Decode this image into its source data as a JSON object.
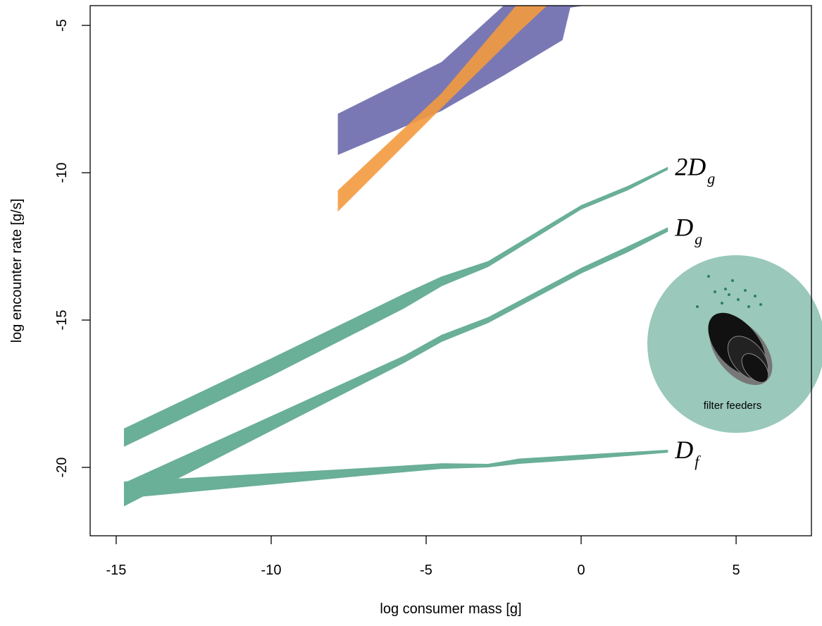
{
  "chart_data": {
    "type": "band",
    "x_label": "log consumer mass [g]",
    "y_label": "log encounter rate [g/s]",
    "xlim": [
      -15.84,
      7.43
    ],
    "ylim": [
      -22.32,
      -4.33
    ],
    "xticks": [
      -15,
      -10,
      -5,
      0,
      5
    ],
    "yticks": [
      -5,
      -10,
      -15,
      -20
    ],
    "annotation": "filter feeders",
    "series": [
      {
        "color": "#7a78b4",
        "x": [
          -7.85,
          -4.5,
          -2.5,
          -0.6,
          -0.35,
          0.1
        ],
        "upper": [
          -8.0,
          -6.24,
          -4.33,
          -4.33,
          -4.33,
          -4.33
        ],
        "lower": [
          -9.4,
          -7.9,
          -6.7,
          -5.5,
          -4.4,
          -4.33
        ]
      },
      {
        "color": "#f39a3e",
        "x": [
          -7.85,
          -4.5,
          -2.1,
          -1.1
        ],
        "upper": [
          -10.6,
          -7.3,
          -4.33,
          -4.33
        ],
        "lower": [
          -11.32,
          -7.8,
          -5.31,
          -4.33
        ]
      },
      {
        "name": "2D",
        "subscript": "g",
        "color": "#6aaf97",
        "x": [
          -14.75,
          -10,
          -5.7,
          -4.5,
          -3,
          0,
          1.5,
          2.8
        ],
        "upper": [
          -18.68,
          -16.3,
          -14.1,
          -13.52,
          -13.0,
          -11.1,
          -10.45,
          -9.8
        ],
        "lower": [
          -19.3,
          -16.9,
          -14.6,
          -13.85,
          -13.2,
          -11.25,
          -10.6,
          -9.9
        ]
      },
      {
        "name": "D",
        "subscript": "g",
        "color": "#6aaf97",
        "x": [
          -14.75,
          -10,
          -5.7,
          -4.5,
          -3,
          0,
          1.5,
          2.8
        ],
        "upper": [
          -20.53,
          -18.26,
          -16.2,
          -15.5,
          -14.9,
          -13.23,
          -12.5,
          -11.85
        ],
        "lower": [
          -21.32,
          -18.76,
          -16.45,
          -15.74,
          -15.1,
          -13.42,
          -12.7,
          -12.0
        ]
      },
      {
        "name": "D",
        "subscript": "f",
        "color": "#6aaf97",
        "x": [
          -14.75,
          -7.5,
          -4.5,
          -3,
          -2,
          0,
          2.8
        ],
        "upper": [
          -20.48,
          -20.05,
          -19.86,
          -19.88,
          -19.7,
          -19.57,
          -19.4
        ],
        "lower": [
          -21.05,
          -20.33,
          -20.05,
          -20.0,
          -19.88,
          -19.74,
          -19.5
        ]
      }
    ]
  }
}
